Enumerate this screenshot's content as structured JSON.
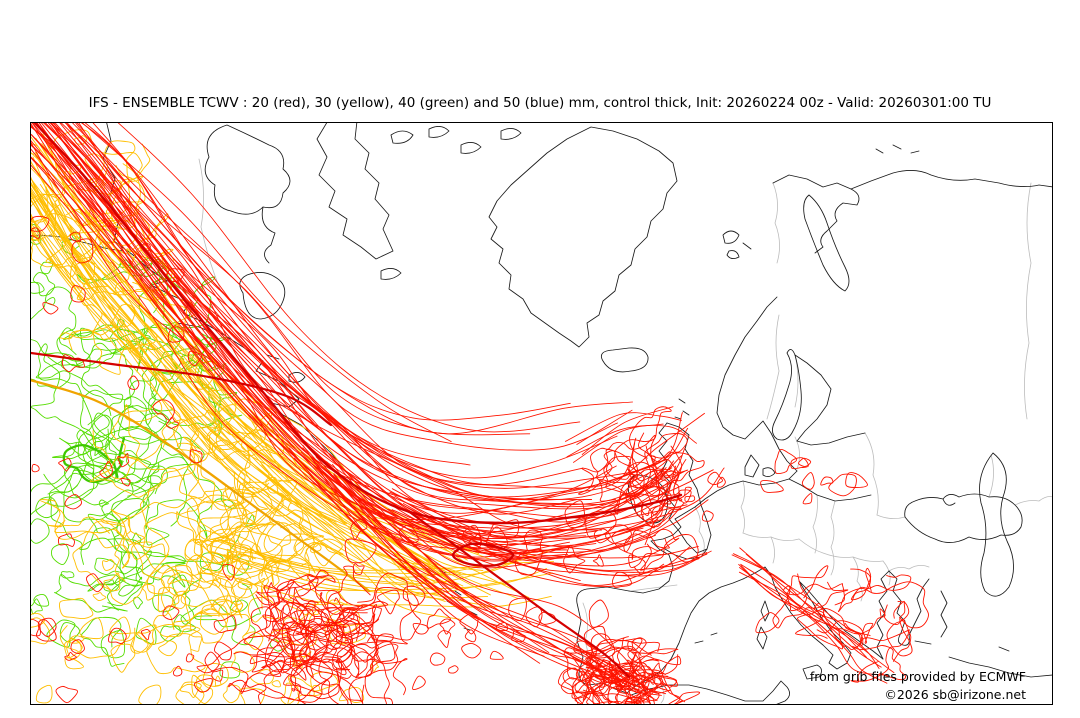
{
  "title": "IFS - ENSEMBLE TCWV : 20 (red), 30 (yellow), 40 (green) and 50 (blue) mm, control thick, Init: 20260224 00z - Valid: 20260301:00 TU",
  "credits": {
    "line1": "from grib files provided by ECMWF",
    "line2": "©2026 sb@irizone.net"
  },
  "map": {
    "type": "ensemble-contour-spaghetti",
    "model": "IFS",
    "field": "TCWV",
    "unit": "mm",
    "init": "20260224 00z",
    "valid": "20260301:00 TU",
    "control_member_style": "thick",
    "levels": [
      {
        "value": 20,
        "label": "20 (red)",
        "color": "#ff1400",
        "control_color": "#d40000"
      },
      {
        "value": 30,
        "label": "30 (yellow)",
        "color": "#ffbe00",
        "control_color": "#f0a400"
      },
      {
        "value": 40,
        "label": "40 (green)",
        "color": "#55dd00",
        "control_color": "#3ec800"
      },
      {
        "value": 50,
        "label": "50 (blue)",
        "color": "#1e50ff",
        "control_color": "#0028d4"
      }
    ],
    "colors": {
      "coastline": "#1a1a1a",
      "border": "#bcbcbc",
      "frame": "#000000",
      "background": "#ffffff"
    }
  }
}
